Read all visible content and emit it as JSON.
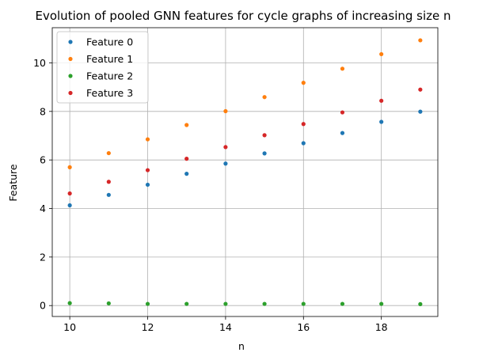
{
  "chart_data": {
    "type": "scatter",
    "title": "Evolution of pooled GNN features for cycle graphs of increasing size n",
    "xlabel": "n",
    "ylabel": "Feature",
    "xlim": [
      9.55,
      19.45
    ],
    "ylim": [
      -0.45,
      11.45
    ],
    "xticks": [
      10,
      12,
      14,
      16,
      18
    ],
    "yticks": [
      0,
      2,
      4,
      6,
      8,
      10
    ],
    "grid": true,
    "legend_position": "top-left",
    "x": [
      10,
      11,
      12,
      13,
      14,
      15,
      16,
      17,
      18,
      19
    ],
    "series": [
      {
        "name": "Feature 0",
        "color": "#1f77b4",
        "values": [
          4.13,
          4.56,
          4.98,
          5.43,
          5.85,
          6.27,
          6.69,
          7.11,
          7.57,
          7.99
        ]
      },
      {
        "name": "Feature 1",
        "color": "#ff7f0e",
        "values": [
          5.7,
          6.28,
          6.85,
          7.44,
          8.01,
          8.59,
          9.18,
          9.76,
          10.36,
          10.93
        ]
      },
      {
        "name": "Feature 2",
        "color": "#2ca02c",
        "values": [
          0.1,
          0.09,
          0.07,
          0.07,
          0.07,
          0.07,
          0.07,
          0.07,
          0.07,
          0.06
        ]
      },
      {
        "name": "Feature 3",
        "color": "#d62728",
        "values": [
          4.62,
          5.1,
          5.58,
          6.05,
          6.53,
          7.02,
          7.48,
          7.96,
          8.44,
          8.9
        ]
      }
    ]
  }
}
